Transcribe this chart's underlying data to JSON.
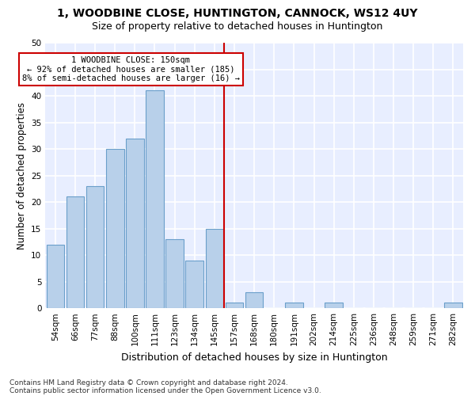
{
  "title": "1, WOODBINE CLOSE, HUNTINGTON, CANNOCK, WS12 4UY",
  "subtitle": "Size of property relative to detached houses in Huntington",
  "xlabel": "Distribution of detached houses by size in Huntington",
  "ylabel": "Number of detached properties",
  "categories": [
    "54sqm",
    "66sqm",
    "77sqm",
    "88sqm",
    "100sqm",
    "111sqm",
    "123sqm",
    "134sqm",
    "145sqm",
    "157sqm",
    "168sqm",
    "180sqm",
    "191sqm",
    "202sqm",
    "214sqm",
    "225sqm",
    "236sqm",
    "248sqm",
    "259sqm",
    "271sqm",
    "282sqm"
  ],
  "values": [
    12,
    21,
    23,
    30,
    32,
    41,
    13,
    9,
    15,
    1,
    3,
    0,
    1,
    0,
    1,
    0,
    0,
    0,
    0,
    0,
    1
  ],
  "bar_color": "#b8d0ea",
  "bar_edge_color": "#6a9fca",
  "vline_color": "#cc0000",
  "annotation_text": "1 WOODBINE CLOSE: 150sqm\n← 92% of detached houses are smaller (185)\n8% of semi-detached houses are larger (16) →",
  "annotation_box_facecolor": "#ffffff",
  "annotation_box_edgecolor": "#cc0000",
  "ylim": [
    0,
    50
  ],
  "yticks": [
    0,
    5,
    10,
    15,
    20,
    25,
    30,
    35,
    40,
    45,
    50
  ],
  "footer1": "Contains HM Land Registry data © Crown copyright and database right 2024.",
  "footer2": "Contains public sector information licensed under the Open Government Licence v3.0.",
  "fig_bg_color": "#ffffff",
  "plot_bg_color": "#e8eeff",
  "grid_color": "#ffffff",
  "title_fontsize": 10,
  "subtitle_fontsize": 9,
  "xlabel_fontsize": 9,
  "ylabel_fontsize": 8.5,
  "tick_fontsize": 7.5,
  "annot_fontsize": 7.5,
  "footer_fontsize": 6.5
}
